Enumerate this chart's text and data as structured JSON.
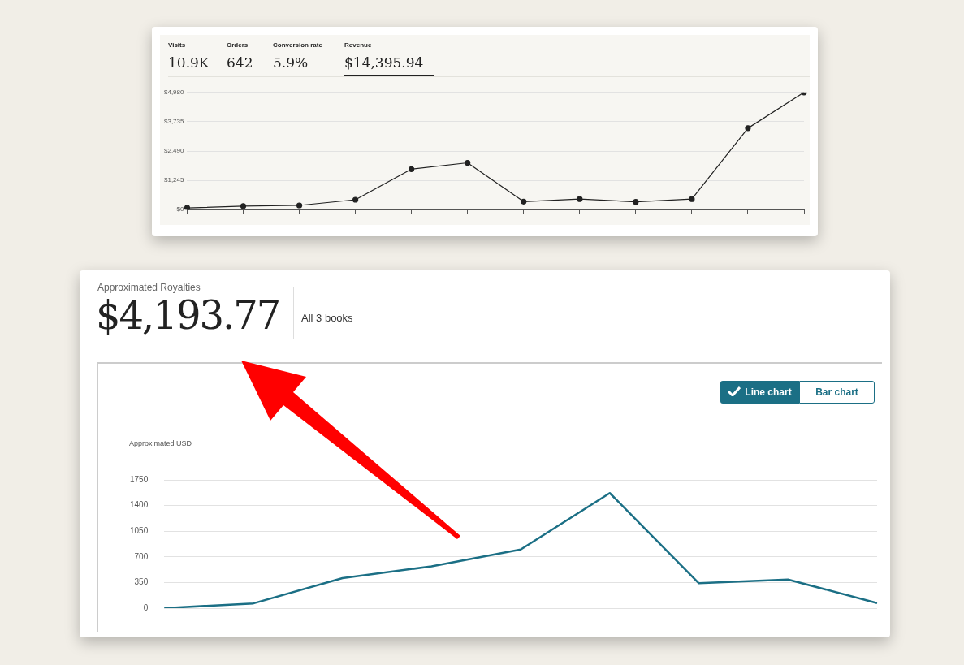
{
  "chart_data": [
    {
      "type": "line",
      "annotations": [
        "Visits",
        "10.9K",
        "Orders",
        "642",
        "Conversion rate",
        "5.9%",
        "Revenue",
        "$14,395.94"
      ],
      "categories": [
        null,
        null,
        null,
        null,
        null,
        null,
        null,
        null,
        null,
        null,
        null,
        null
      ],
      "values": [
        70,
        150,
        180,
        420,
        1720,
        1990,
        340,
        450,
        330,
        450,
        3460,
        4980
      ],
      "color": "#222222",
      "ylim": [
        0,
        4980
      ],
      "yticks": [
        {
          "value": 0,
          "label": "$0"
        },
        {
          "value": 1245,
          "label": "$1,245"
        },
        {
          "value": 2490,
          "label": "$2,490"
        },
        {
          "value": 3735,
          "label": "$3,735"
        },
        {
          "value": 4980,
          "label": "$4,980"
        }
      ],
      "grid": "y",
      "marker": "circle",
      "tick_labels": "y"
    },
    {
      "type": "line",
      "title": "Approximated Royalties",
      "subtitle": "$4,193.77",
      "ylabel": "Approximated USD",
      "annotations": [
        "All 3 books",
        "Line chart",
        "Bar chart"
      ],
      "categories": [
        null,
        null,
        null,
        null,
        null,
        null,
        null,
        null,
        null
      ],
      "values": [
        0,
        65,
        410,
        570,
        800,
        1570,
        340,
        390,
        70
      ],
      "color": "#1b6f85",
      "ylim": [
        0,
        1750
      ],
      "yticks": [
        0,
        350,
        700,
        1050,
        1400,
        1750
      ],
      "grid": "y",
      "marker": "none",
      "tick_labels": "y"
    }
  ]
}
